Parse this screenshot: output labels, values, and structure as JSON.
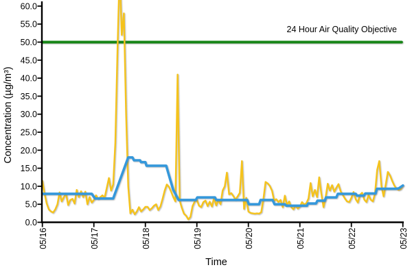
{
  "chart_data": {
    "type": "line",
    "title": "",
    "xlabel": "Time",
    "ylabel": "Concentration (µg/m³)",
    "x_tick_labels": [
      "05/16",
      "05/17",
      "05/18",
      "05/19",
      "05/20",
      "05/21",
      "05/22",
      "05/23"
    ],
    "x_unit": "hours-from-05/16-00:00",
    "x_range_hours": [
      0,
      168
    ],
    "ylim": [
      0,
      60
    ],
    "y_ticks": [
      0,
      5,
      10,
      15,
      20,
      25,
      30,
      35,
      40,
      45,
      50,
      55,
      60
    ],
    "y_tick_labels": [
      "0.0",
      "5.0",
      "10.0",
      "15.0",
      "20.0",
      "25.0",
      "30.0",
      "35.0",
      "40.0",
      "45.0",
      "50.0",
      "55.0",
      "60.0"
    ],
    "grid": false,
    "legend": "none",
    "annotation": {
      "label": "24 Hour Air Quality Objective",
      "value": 50
    },
    "series": [
      {
        "name": "24-hour-air-quality-objective",
        "type": "reference-line",
        "color": "#188618",
        "width": 4,
        "points": [
          [
            0,
            50
          ],
          [
            167.4,
            50
          ]
        ]
      },
      {
        "name": "hourly-concentration",
        "type": "line",
        "color": "#F5C31C",
        "width": 2.4,
        "start_hour": 0,
        "step_hours": 1,
        "values": [
          11.5,
          8.0,
          5.2,
          3.6,
          3.0,
          2.7,
          3.6,
          5.0,
          8.3,
          5.8,
          7.0,
          8.0,
          4.8,
          6.2,
          6.5,
          5.2,
          9.0,
          7.0,
          8.6,
          7.0,
          8.5,
          5.0,
          7.0,
          5.5,
          6.2,
          7.5,
          6.5,
          7.0,
          7.5,
          6.8,
          9.5,
          12.3,
          8.8,
          10.5,
          22.0,
          48.0,
          70.0,
          52.0,
          58.0,
          30.0,
          10.0,
          2.5,
          3.5,
          2.2,
          3.0,
          4.2,
          3.0,
          3.6,
          4.3,
          4.3,
          3.4,
          3.9,
          4.6,
          5.0,
          3.4,
          4.4,
          6.5,
          8.8,
          10.5,
          9.8,
          8.5,
          7.0,
          5.8,
          41.0,
          6.0,
          4.0,
          2.4,
          1.8,
          0.8,
          1.5,
          4.5,
          5.8,
          6.2,
          4.6,
          4.2,
          5.6,
          6.0,
          4.5,
          5.7,
          4.4,
          6.8,
          4.7,
          6.2,
          5.0,
          8.8,
          10.0,
          13.8,
          7.8,
          8.1,
          7.3,
          6.3,
          7.2,
          8.2,
          17.0,
          3.7,
          6.8,
          3.0,
          2.6,
          2.5,
          2.4,
          2.5,
          2.4,
          2.8,
          6.5,
          11.2,
          10.8,
          10.1,
          8.8,
          6.0,
          6.4,
          5.6,
          6.2,
          4.2,
          7.4,
          4.8,
          5.8,
          4.2,
          3.6,
          4.7,
          3.8,
          4.4,
          5.6,
          4.9,
          5.3,
          6.6,
          10.9,
          7.2,
          9.0,
          7.0,
          12.5,
          8.0,
          4.2,
          7.0,
          10.7,
          8.8,
          10.3,
          8.5,
          9.6,
          10.6,
          8.6,
          7.6,
          6.6,
          5.8,
          5.6,
          6.8,
          8.4,
          6.4,
          5.5,
          7.6,
          8.2,
          6.3,
          5.6,
          7.6,
          6.3,
          5.8,
          8.0,
          14.5,
          17.0,
          10.0,
          7.2,
          10.5,
          14.0,
          13.0,
          11.5,
          10.2,
          9.4,
          9.0,
          9.2,
          10.2
        ]
      },
      {
        "name": "24-hour-average-concentration",
        "type": "line",
        "color": "#3598DB",
        "width": 3.6,
        "points": [
          [
            0,
            7.9
          ],
          [
            23,
            7.9
          ],
          [
            24.5,
            6.6
          ],
          [
            33,
            6.6
          ],
          [
            40,
            18.0
          ],
          [
            42,
            18.0
          ],
          [
            42.7,
            17.2
          ],
          [
            45.5,
            17.2
          ],
          [
            46,
            16.7
          ],
          [
            48,
            16.7
          ],
          [
            48.5,
            15.7
          ],
          [
            57.7,
            15.7
          ],
          [
            59.5,
            12.0
          ],
          [
            61,
            9.0
          ],
          [
            63.5,
            6.2
          ],
          [
            71.5,
            6.2
          ],
          [
            72.2,
            6.9
          ],
          [
            80.4,
            6.9
          ],
          [
            81,
            6.2
          ],
          [
            95.5,
            6.2
          ],
          [
            96.2,
            5.0
          ],
          [
            101,
            5.0
          ],
          [
            101.7,
            6.2
          ],
          [
            107.3,
            6.2
          ],
          [
            108.2,
            5.0
          ],
          [
            113,
            5.0
          ],
          [
            113.7,
            4.6
          ],
          [
            123.3,
            4.6
          ],
          [
            123.8,
            5.2
          ],
          [
            127.5,
            5.2
          ],
          [
            128.2,
            6.0
          ],
          [
            131.6,
            6.0
          ],
          [
            132.2,
            6.9
          ],
          [
            137,
            6.9
          ],
          [
            137.7,
            7.9
          ],
          [
            146,
            7.9
          ],
          [
            146.6,
            7.4
          ],
          [
            149.9,
            7.4
          ],
          [
            150.5,
            8.0
          ],
          [
            155.3,
            8.0
          ],
          [
            155.9,
            9.3
          ],
          [
            164.6,
            9.3
          ],
          [
            166,
            9.4
          ],
          [
            168,
            10.2
          ]
        ]
      }
    ]
  }
}
